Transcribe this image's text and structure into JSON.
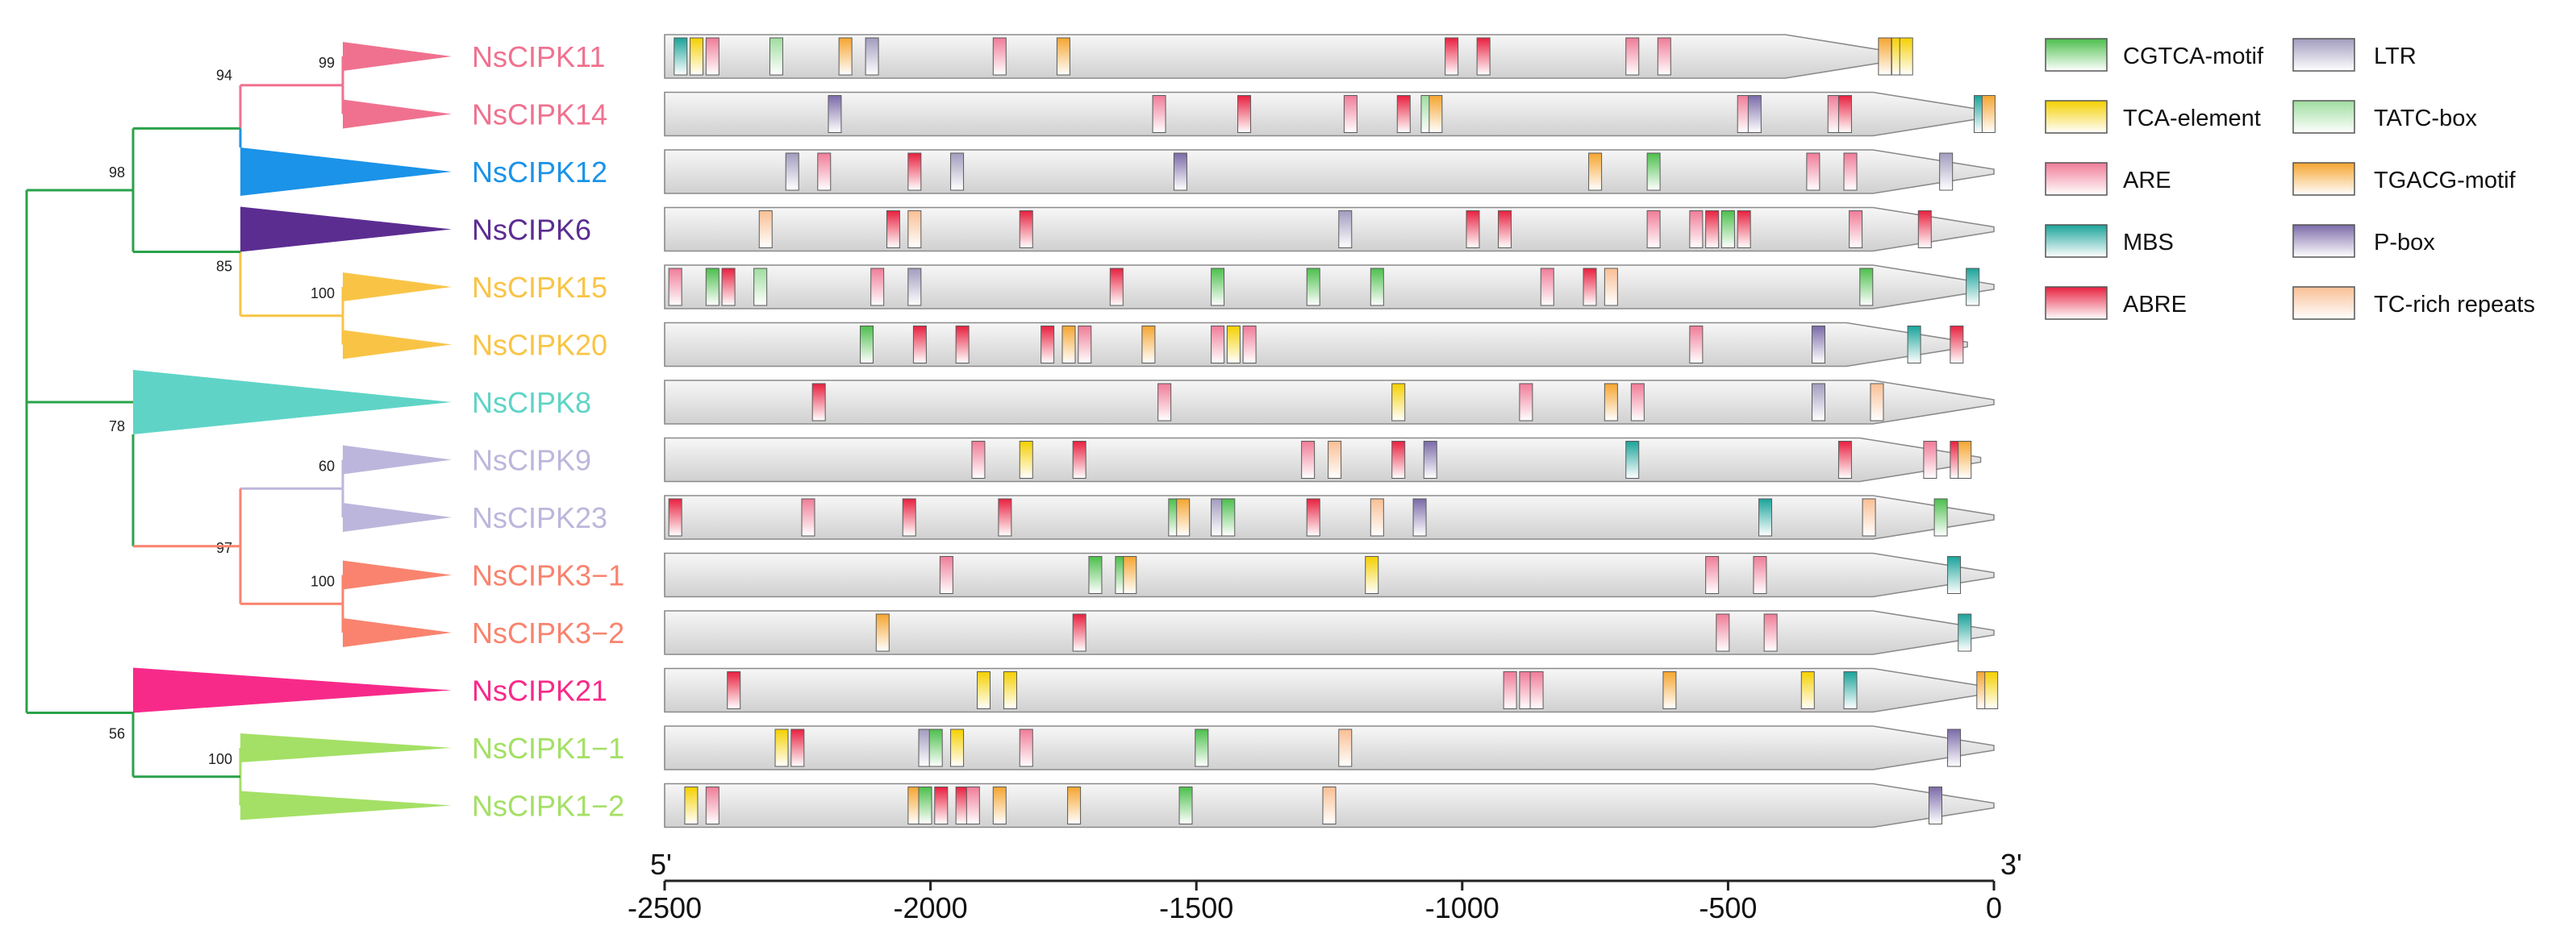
{
  "colors": {
    "CGTCA-motif": "#4cbf4c",
    "TCA-element": "#f5d000",
    "ARE": "#f07c98",
    "MBS": "#1aa39a",
    "ABRE": "#e8203f",
    "LTR": "#a29cbe",
    "TATC-box": "#9fdd9f",
    "TGACG-motif": "#f5a530",
    "P-box": "#7b6aa8",
    "TC-rich repeats": "#f9bf94"
  },
  "legend": [
    {
      "name": "CGTCA-motif"
    },
    {
      "name": "LTR"
    },
    {
      "name": "TCA-element"
    },
    {
      "name": "TATC-box"
    },
    {
      "name": "ARE"
    },
    {
      "name": "TGACG-motif"
    },
    {
      "name": "MBS"
    },
    {
      "name": "P-box"
    },
    {
      "name": "ABRE"
    },
    {
      "name": "TC-rich repeats"
    }
  ],
  "axis": {
    "min": -2500,
    "max": 0,
    "ticks": [
      -2500,
      -2000,
      -1500,
      -1000,
      -500,
      0
    ],
    "end5": "5'",
    "end3": "3'"
  },
  "tree": {
    "bootstraps": [
      "99",
      "94",
      "98",
      "85",
      "100",
      "78",
      "60",
      "97",
      "100",
      "56",
      "100"
    ]
  },
  "genes": [
    {
      "name": "NsCIPK11",
      "color": "#f0718f",
      "tip": -165,
      "elements": [
        {
          "t": "MBS",
          "p": -2470
        },
        {
          "t": "TCA-element",
          "p": -2440
        },
        {
          "t": "ARE",
          "p": -2410
        },
        {
          "t": "TATC-box",
          "p": -2290
        },
        {
          "t": "TGACG-motif",
          "p": -2160
        },
        {
          "t": "LTR",
          "p": -2110
        },
        {
          "t": "ARE",
          "p": -1870
        },
        {
          "t": "TGACG-motif",
          "p": -1750
        },
        {
          "t": "ABRE",
          "p": -1020
        },
        {
          "t": "ABRE",
          "p": -960
        },
        {
          "t": "ARE",
          "p": -680
        },
        {
          "t": "ARE",
          "p": -620
        },
        {
          "t": "TGACG-motif",
          "p": -205
        },
        {
          "t": "TCA-element",
          "p": -180
        },
        {
          "t": "TCA-element",
          "p": -165
        }
      ]
    },
    {
      "name": "NsCIPK14",
      "color": "#f0718f",
      "tip": 0,
      "elements": [
        {
          "t": "P-box",
          "p": -2180
        },
        {
          "t": "ARE",
          "p": -1570
        },
        {
          "t": "ABRE",
          "p": -1410
        },
        {
          "t": "ARE",
          "p": -1210
        },
        {
          "t": "ABRE",
          "p": -1110
        },
        {
          "t": "TATC-box",
          "p": -1065
        },
        {
          "t": "TGACG-motif",
          "p": -1050
        },
        {
          "t": "ARE",
          "p": -470
        },
        {
          "t": "P-box",
          "p": -450
        },
        {
          "t": "ARE",
          "p": -300
        },
        {
          "t": "ABRE",
          "p": -280
        },
        {
          "t": "MBS",
          "p": -25
        },
        {
          "t": "TGACG-motif",
          "p": -10
        }
      ]
    },
    {
      "name": "NsCIPK12",
      "color": "#1b93e8",
      "tip": 0,
      "elements": [
        {
          "t": "LTR",
          "p": -2260
        },
        {
          "t": "ARE",
          "p": -2200
        },
        {
          "t": "ABRE",
          "p": -2030
        },
        {
          "t": "LTR",
          "p": -1950
        },
        {
          "t": "P-box",
          "p": -1530
        },
        {
          "t": "TGACG-motif",
          "p": -750
        },
        {
          "t": "CGTCA-motif",
          "p": -640
        },
        {
          "t": "ARE",
          "p": -340
        },
        {
          "t": "ARE",
          "p": -270
        },
        {
          "t": "LTR",
          "p": -90
        }
      ]
    },
    {
      "name": "NsCIPK6",
      "color": "#5c2d91",
      "tip": 0,
      "elements": [
        {
          "t": "TC-rich repeats",
          "p": -2310
        },
        {
          "t": "ABRE",
          "p": -2070
        },
        {
          "t": "TC-rich repeats",
          "p": -2030
        },
        {
          "t": "ABRE",
          "p": -1820
        },
        {
          "t": "LTR",
          "p": -1220
        },
        {
          "t": "ABRE",
          "p": -980
        },
        {
          "t": "ABRE",
          "p": -920
        },
        {
          "t": "ARE",
          "p": -640
        },
        {
          "t": "ARE",
          "p": -560
        },
        {
          "t": "ABRE",
          "p": -530
        },
        {
          "t": "CGTCA-motif",
          "p": -500
        },
        {
          "t": "ABRE",
          "p": -470
        },
        {
          "t": "ARE",
          "p": -260
        },
        {
          "t": "ABRE",
          "p": -130
        }
      ]
    },
    {
      "name": "NsCIPK15",
      "color": "#f9c446",
      "tip": 0,
      "elements": [
        {
          "t": "ARE",
          "p": -2480
        },
        {
          "t": "CGTCA-motif",
          "p": -2410
        },
        {
          "t": "ABRE",
          "p": -2380
        },
        {
          "t": "TATC-box",
          "p": -2320
        },
        {
          "t": "ARE",
          "p": -2100
        },
        {
          "t": "LTR",
          "p": -2030
        },
        {
          "t": "ABRE",
          "p": -1650
        },
        {
          "t": "CGTCA-motif",
          "p": -1460
        },
        {
          "t": "CGTCA-motif",
          "p": -1280
        },
        {
          "t": "CGTCA-motif",
          "p": -1160
        },
        {
          "t": "ARE",
          "p": -840
        },
        {
          "t": "ABRE",
          "p": -760
        },
        {
          "t": "TC-rich repeats",
          "p": -720
        },
        {
          "t": "CGTCA-motif",
          "p": -240
        },
        {
          "t": "MBS",
          "p": -40
        }
      ]
    },
    {
      "name": "NsCIPK20",
      "color": "#f9c446",
      "tip": -50,
      "elements": [
        {
          "t": "CGTCA-motif",
          "p": -2120
        },
        {
          "t": "ABRE",
          "p": -2020
        },
        {
          "t": "ABRE",
          "p": -1940
        },
        {
          "t": "ABRE",
          "p": -1780
        },
        {
          "t": "TGACG-motif",
          "p": -1740
        },
        {
          "t": "ARE",
          "p": -1710
        },
        {
          "t": "TGACG-motif",
          "p": -1590
        },
        {
          "t": "ARE",
          "p": -1460
        },
        {
          "t": "TCA-element",
          "p": -1430
        },
        {
          "t": "ARE",
          "p": -1400
        },
        {
          "t": "ARE",
          "p": -560
        },
        {
          "t": "P-box",
          "p": -330
        },
        {
          "t": "MBS",
          "p": -150
        },
        {
          "t": "ABRE",
          "p": -70
        }
      ]
    },
    {
      "name": "NsCIPK8",
      "color": "#5fd4c6",
      "tip": 0,
      "elements": [
        {
          "t": "ABRE",
          "p": -2210
        },
        {
          "t": "ARE",
          "p": -1560
        },
        {
          "t": "TCA-element",
          "p": -1120
        },
        {
          "t": "ARE",
          "p": -880
        },
        {
          "t": "TGACG-motif",
          "p": -720
        },
        {
          "t": "ARE",
          "p": -670
        },
        {
          "t": "LTR",
          "p": -330
        },
        {
          "t": "TC-rich repeats",
          "p": -220
        }
      ]
    },
    {
      "name": "NsCIPK9",
      "color": "#bdb6dc",
      "tip": -25,
      "elements": [
        {
          "t": "ARE",
          "p": -1910
        },
        {
          "t": "TCA-element",
          "p": -1820
        },
        {
          "t": "ABRE",
          "p": -1720
        },
        {
          "t": "ARE",
          "p": -1290
        },
        {
          "t": "TC-rich repeats",
          "p": -1240
        },
        {
          "t": "ABRE",
          "p": -1120
        },
        {
          "t": "P-box",
          "p": -1060
        },
        {
          "t": "MBS",
          "p": -680
        },
        {
          "t": "ABRE",
          "p": -280
        },
        {
          "t": "ARE",
          "p": -120
        },
        {
          "t": "ABRE",
          "p": -70
        },
        {
          "t": "TGACG-motif",
          "p": -55
        }
      ]
    },
    {
      "name": "NsCIPK23",
      "color": "#bdb6dc",
      "tip": 0,
      "elements": [
        {
          "t": "ABRE",
          "p": -2480
        },
        {
          "t": "ARE",
          "p": -2230
        },
        {
          "t": "ABRE",
          "p": -2040
        },
        {
          "t": "ABRE",
          "p": -1860
        },
        {
          "t": "CGTCA-motif",
          "p": -1540
        },
        {
          "t": "TGACG-motif",
          "p": -1525
        },
        {
          "t": "LTR",
          "p": -1460
        },
        {
          "t": "CGTCA-motif",
          "p": -1440
        },
        {
          "t": "ABRE",
          "p": -1280
        },
        {
          "t": "TC-rich repeats",
          "p": -1160
        },
        {
          "t": "P-box",
          "p": -1080
        },
        {
          "t": "MBS",
          "p": -430
        },
        {
          "t": "TC-rich repeats",
          "p": -235
        },
        {
          "t": "CGTCA-motif",
          "p": -100
        }
      ]
    },
    {
      "name": "NsCIPK3−1",
      "color": "#f9836e",
      "tip": 0,
      "elements": [
        {
          "t": "ARE",
          "p": -1970
        },
        {
          "t": "CGTCA-motif",
          "p": -1690
        },
        {
          "t": "CGTCA-motif",
          "p": -1640
        },
        {
          "t": "TGACG-motif",
          "p": -1625
        },
        {
          "t": "TCA-element",
          "p": -1170
        },
        {
          "t": "ARE",
          "p": -530
        },
        {
          "t": "ARE",
          "p": -440
        },
        {
          "t": "MBS",
          "p": -75
        }
      ]
    },
    {
      "name": "NsCIPK3−2",
      "color": "#f9836e",
      "tip": 0,
      "elements": [
        {
          "t": "TGACG-motif",
          "p": -2090
        },
        {
          "t": "ABRE",
          "p": -1720
        },
        {
          "t": "ARE",
          "p": -510
        },
        {
          "t": "ARE",
          "p": -420
        },
        {
          "t": "MBS",
          "p": -55
        }
      ]
    },
    {
      "name": "NsCIPK21",
      "color": "#f72a8a",
      "tip": 0,
      "elements": [
        {
          "t": "ABRE",
          "p": -2370
        },
        {
          "t": "TCA-element",
          "p": -1900
        },
        {
          "t": "TCA-element",
          "p": -1850
        },
        {
          "t": "ARE",
          "p": -910
        },
        {
          "t": "ARE",
          "p": -880
        },
        {
          "t": "ARE",
          "p": -860
        },
        {
          "t": "TGACG-motif",
          "p": -610
        },
        {
          "t": "TCA-element",
          "p": -350
        },
        {
          "t": "MBS",
          "p": -270
        },
        {
          "t": "TGACG-motif",
          "p": -20
        },
        {
          "t": "TCA-element",
          "p": -5
        }
      ]
    },
    {
      "name": "NsCIPK1−1",
      "color": "#a4e065",
      "tip": 0,
      "elements": [
        {
          "t": "TCA-element",
          "p": -2280
        },
        {
          "t": "ABRE",
          "p": -2250
        },
        {
          "t": "LTR",
          "p": -2010
        },
        {
          "t": "CGTCA-motif",
          "p": -1990
        },
        {
          "t": "TCA-element",
          "p": -1950
        },
        {
          "t": "ARE",
          "p": -1820
        },
        {
          "t": "CGTCA-motif",
          "p": -1490
        },
        {
          "t": "TC-rich repeats",
          "p": -1220
        },
        {
          "t": "P-box",
          "p": -75
        }
      ]
    },
    {
      "name": "NsCIPK1−2",
      "color": "#a4e065",
      "tip": 0,
      "elements": [
        {
          "t": "TCA-element",
          "p": -2450
        },
        {
          "t": "ARE",
          "p": -2410
        },
        {
          "t": "TGACG-motif",
          "p": -2030
        },
        {
          "t": "CGTCA-motif",
          "p": -2010
        },
        {
          "t": "ABRE",
          "p": -1980
        },
        {
          "t": "ABRE",
          "p": -1940
        },
        {
          "t": "ARE",
          "p": -1920
        },
        {
          "t": "TGACG-motif",
          "p": -1870
        },
        {
          "t": "TGACG-motif",
          "p": -1730
        },
        {
          "t": "CGTCA-motif",
          "p": -1520
        },
        {
          "t": "TC-rich repeats",
          "p": -1250
        },
        {
          "t": "P-box",
          "p": -110
        }
      ]
    }
  ]
}
